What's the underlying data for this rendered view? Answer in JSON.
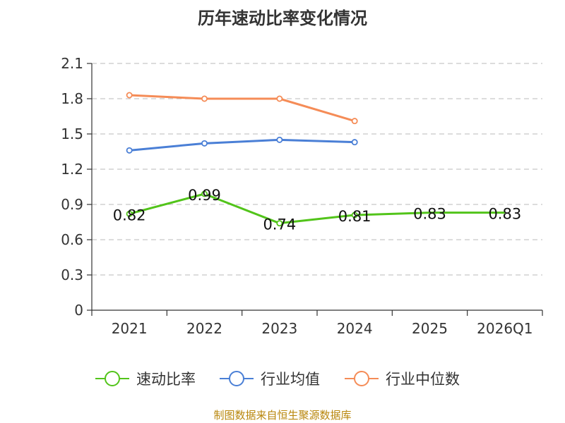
{
  "chart_data": {
    "type": "line",
    "title": "历年速动比率变化情况",
    "categories": [
      "2021",
      "2022",
      "2023",
      "2024",
      "2025",
      "2026Q1"
    ],
    "yticks": [
      "0",
      "0.3",
      "0.6",
      "0.9",
      "1.2",
      "1.5",
      "1.8",
      "2.1"
    ],
    "ylim": [
      0,
      2.1
    ],
    "grid": true,
    "legend_position": "bottom",
    "series": [
      {
        "name": "速动比率",
        "color": "#52c41a",
        "values": [
          0.82,
          0.99,
          0.74,
          0.81,
          0.83,
          0.83
        ],
        "labels": [
          "0.82",
          "0.99",
          "0.74",
          "0.81",
          "0.83",
          "0.83"
        ],
        "show_markers": [
          true,
          true,
          true,
          true,
          false,
          false
        ]
      },
      {
        "name": "行业均值",
        "color": "#4a7fd6",
        "values": [
          1.36,
          1.42,
          1.45,
          1.43,
          null,
          null
        ]
      },
      {
        "name": "行业中位数",
        "color": "#f58c57",
        "values": [
          1.83,
          1.8,
          1.8,
          1.61,
          null,
          null
        ]
      }
    ]
  },
  "source": "制图数据来自恒生聚源数据库"
}
